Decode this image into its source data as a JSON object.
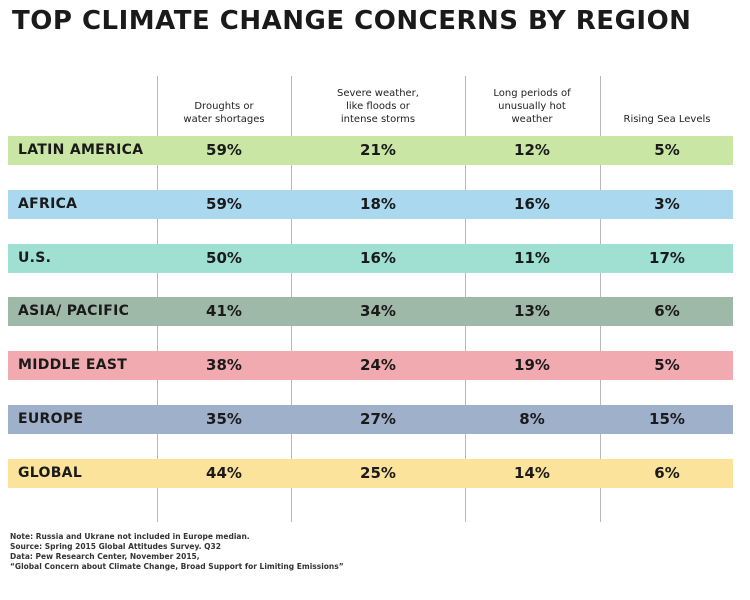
{
  "title": "TOP CLIMATE CHANGE CONCERNS BY REGION",
  "chart_data": {
    "type": "table",
    "title": "TOP CLIMATE CHANGE CONCERNS BY REGION",
    "columns": [
      [
        "Droughts or",
        "water shortages"
      ],
      [
        "Severe weather,",
        "like floods or",
        "intense storms"
      ],
      [
        "Long periods of",
        "unusually hot",
        "weather"
      ],
      [
        "Rising Sea Levels"
      ]
    ],
    "rows": [
      {
        "label": "LATIN AMERICA",
        "color": "#c9e6a4",
        "values": [
          "59%",
          "21%",
          "12%",
          "5%"
        ]
      },
      {
        "label": "AFRICA",
        "color": "#a9d8ef",
        "values": [
          "59%",
          "18%",
          "16%",
          "3%"
        ]
      },
      {
        "label": "U.S.",
        "color": "#9fe0d2",
        "values": [
          "50%",
          "16%",
          "11%",
          "17%"
        ]
      },
      {
        "label": "ASIA/ PACIFIC",
        "color": "#9fb9a8",
        "values": [
          "41%",
          "34%",
          "13%",
          "6%"
        ]
      },
      {
        "label": "MIDDLE EAST",
        "color": "#f2aab1",
        "values": [
          "38%",
          "24%",
          "19%",
          "5%"
        ]
      },
      {
        "label": "EUROPE",
        "color": "#9fb0cb",
        "values": [
          "35%",
          "27%",
          "8%",
          "15%"
        ]
      },
      {
        "label": "GLOBAL",
        "color": "#fbe39b",
        "values": [
          "44%",
          "25%",
          "14%",
          "6%"
        ]
      }
    ]
  },
  "notes": [
    "Note: Russia and Ukrane not included in Europe median.",
    "Source: Spring 2015 Global Attitudes Survey. Q32",
    "Data: Pew Research Center, November 2015,",
    "“Global Concern about Climate Change, Broad Support for Limiting Emissions”"
  ]
}
